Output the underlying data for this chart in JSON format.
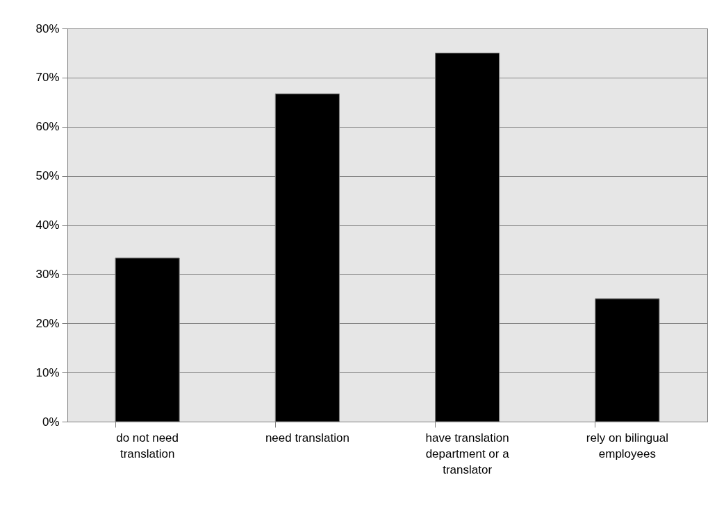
{
  "chart_data": {
    "type": "bar",
    "categories": [
      "do not need translation",
      "need translation",
      "have translation department or a translator",
      "rely on bilingual employees"
    ],
    "values": [
      33.3,
      66.7,
      75,
      25
    ],
    "color": "#000000",
    "ylim": [
      0,
      80
    ],
    "yticks": [
      {
        "value": 0,
        "label": "0%"
      },
      {
        "value": 10,
        "label": "10%"
      },
      {
        "value": 20,
        "label": "20%"
      },
      {
        "value": 30,
        "label": "30%"
      },
      {
        "value": 40,
        "label": "40%"
      },
      {
        "value": 50,
        "label": "50%"
      },
      {
        "value": 60,
        "label": "60%"
      },
      {
        "value": 70,
        "label": "70%"
      },
      {
        "value": 80,
        "label": "80%"
      }
    ],
    "grid": "y"
  }
}
